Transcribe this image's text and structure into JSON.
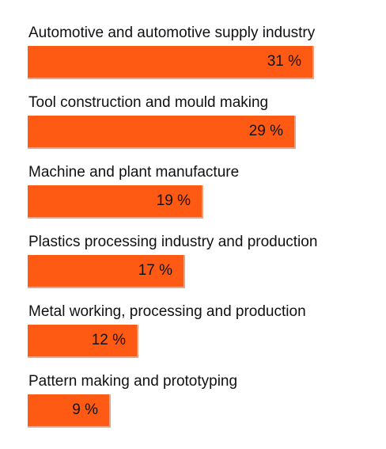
{
  "chart_data": {
    "type": "bar",
    "orientation": "horizontal",
    "categories": [
      "Automotive and automotive supply industry",
      "Tool construction and mould making",
      "Machine and plant manufacture",
      "Plastics processing industry and production",
      "Metal working, processing and production",
      "Pattern making and prototyping"
    ],
    "values": [
      31,
      29,
      19,
      17,
      12,
      9
    ],
    "value_labels": [
      "31 %",
      "29 %",
      "19 %",
      "17 %",
      "12 %",
      "9 %"
    ],
    "unit": "%",
    "title": "",
    "xlabel": "",
    "ylabel": "",
    "xlim": [
      0,
      31
    ],
    "grid": false,
    "legend": "none",
    "bar_color": "#ff5a14",
    "bar_edge_color": "#f0a27e"
  }
}
